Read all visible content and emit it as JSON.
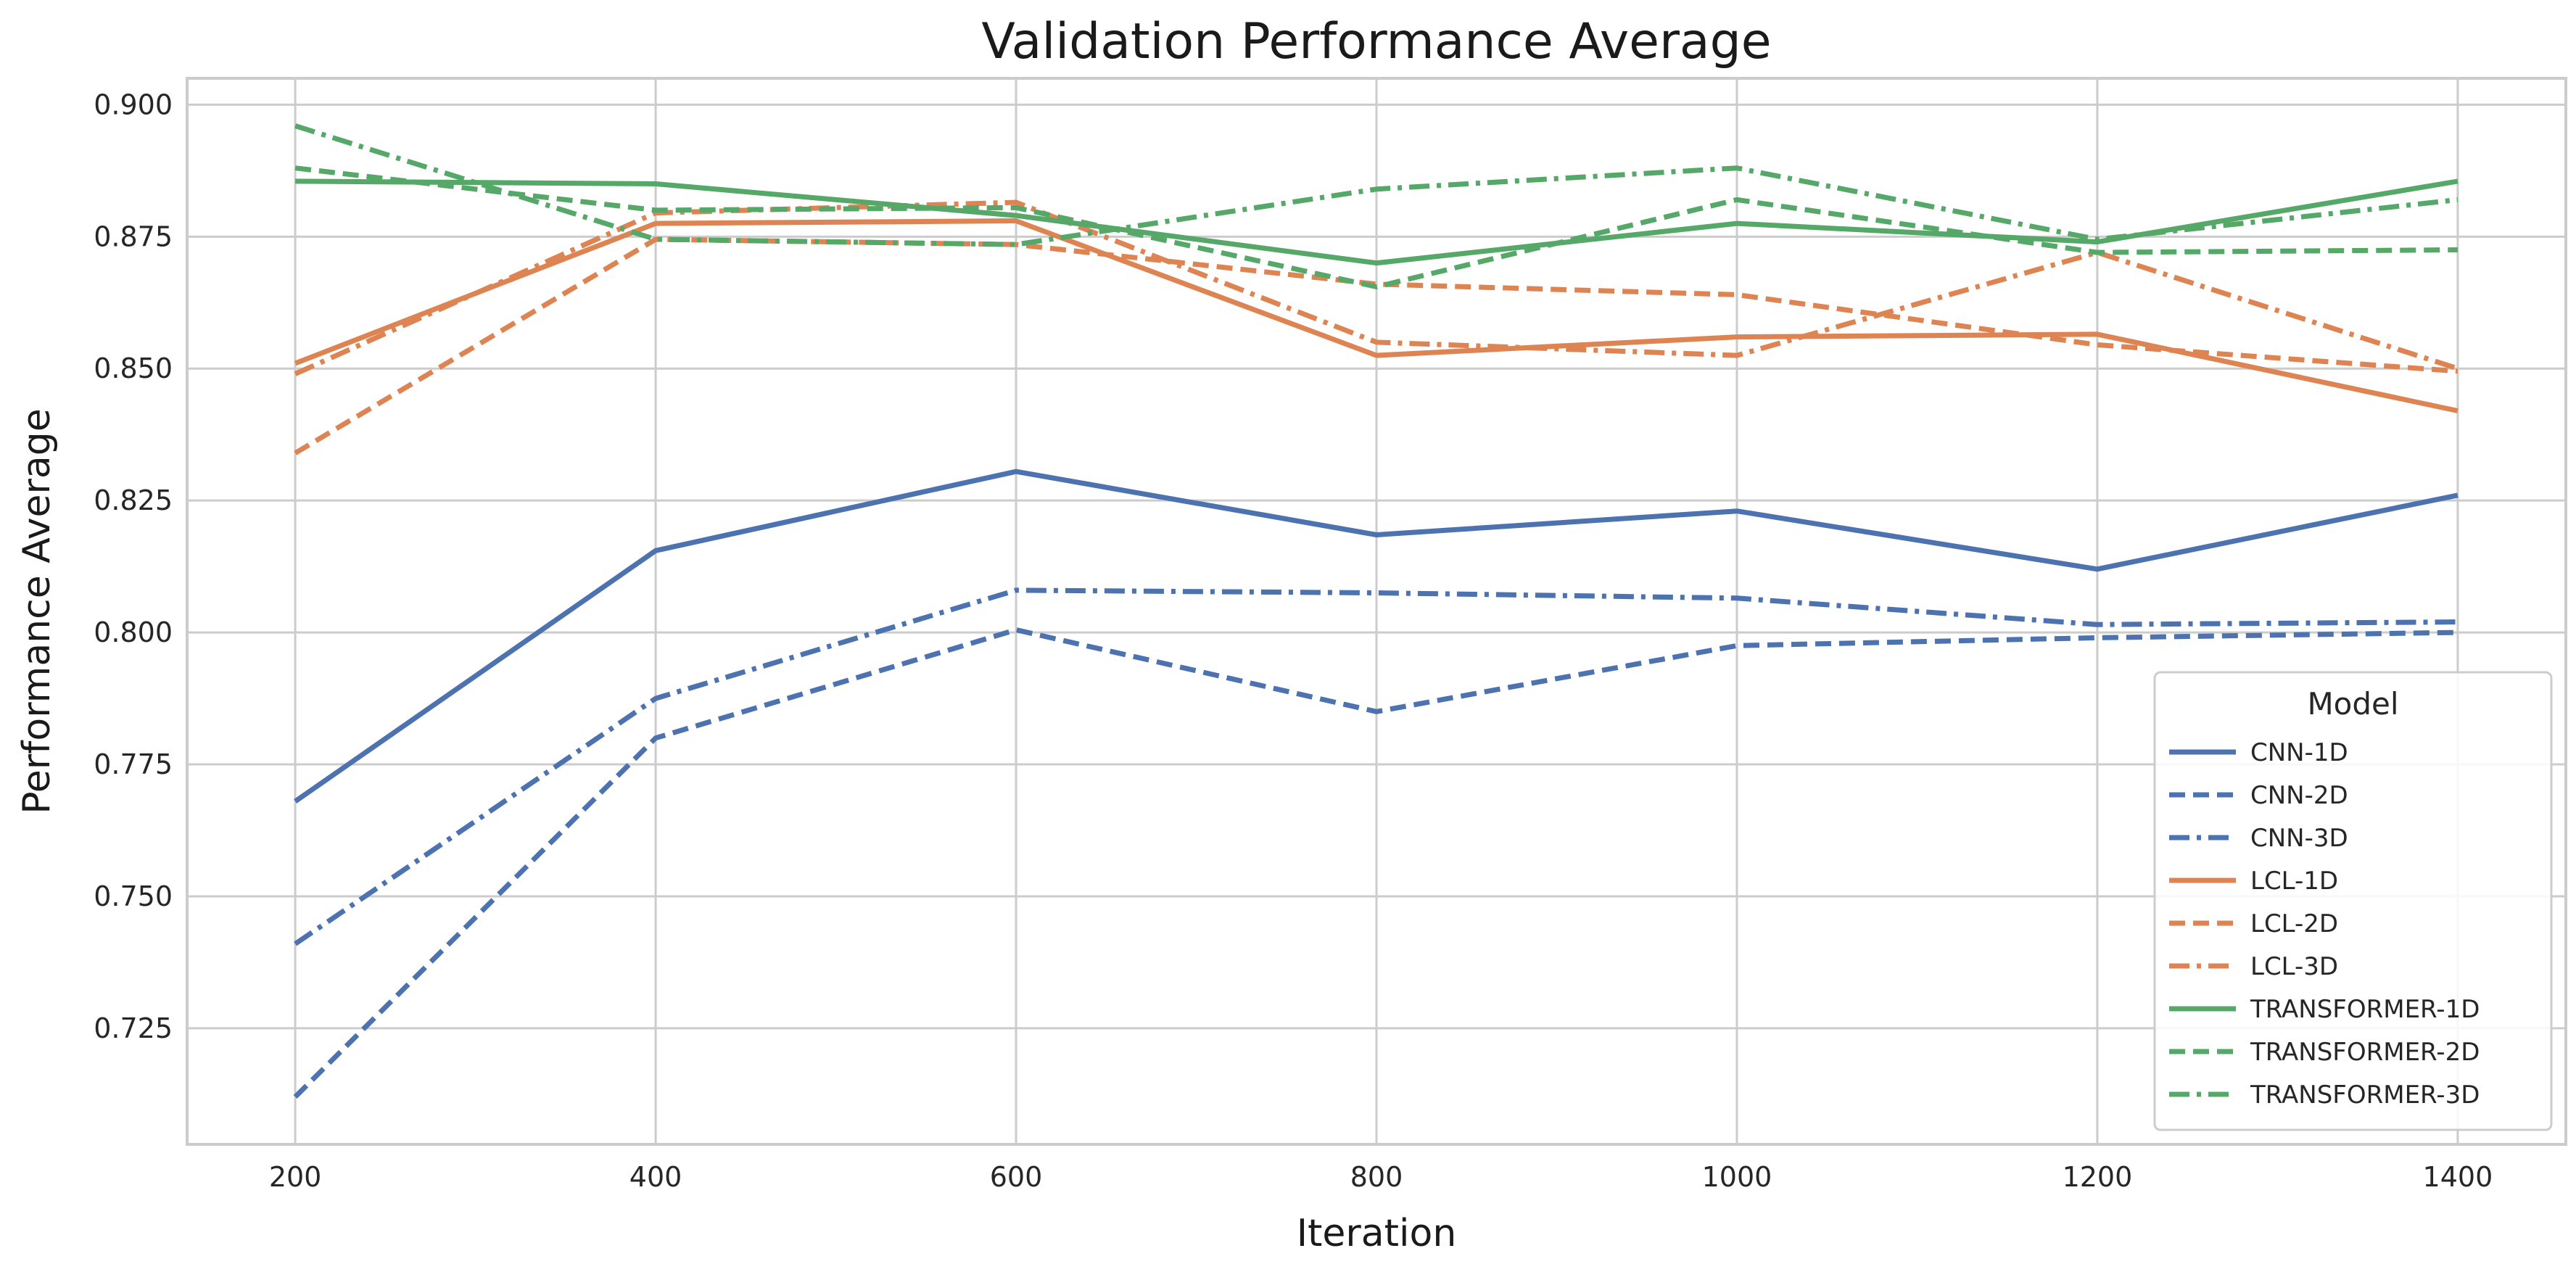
{
  "chart_data": {
    "type": "line",
    "title": "Validation Performance Average",
    "xlabel": "Iteration",
    "ylabel": "Performance Average",
    "x": [
      200,
      400,
      600,
      800,
      1000,
      1200,
      1400
    ],
    "xticks": [
      "200",
      "400",
      "600",
      "800",
      "1000",
      "1200",
      "1400"
    ],
    "yticks": [
      "0.725",
      "0.750",
      "0.775",
      "0.800",
      "0.825",
      "0.850",
      "0.875",
      "0.900"
    ],
    "xlim": [
      140,
      1460
    ],
    "ylim": [
      0.703,
      0.905
    ],
    "grid": true,
    "legend": {
      "title": "Model",
      "placement": "lower-right"
    },
    "series": [
      {
        "name": "CNN-1D",
        "color": "#4c72b0",
        "style": "solid",
        "values": [
          0.768,
          0.8155,
          0.8305,
          0.8185,
          0.823,
          0.812,
          0.826
        ]
      },
      {
        "name": "CNN-2D",
        "color": "#4c72b0",
        "style": "dashed",
        "values": [
          0.712,
          0.78,
          0.8005,
          0.785,
          0.7975,
          0.799,
          0.8
        ]
      },
      {
        "name": "CNN-3D",
        "color": "#4c72b0",
        "style": "dashdot",
        "values": [
          0.741,
          0.7875,
          0.808,
          0.8075,
          0.8065,
          0.8015,
          0.802
        ]
      },
      {
        "name": "LCL-1D",
        "color": "#dd8452",
        "style": "solid",
        "values": [
          0.851,
          0.8775,
          0.878,
          0.8525,
          0.856,
          0.8565,
          0.842
        ]
      },
      {
        "name": "LCL-2D",
        "color": "#dd8452",
        "style": "dashed",
        "values": [
          0.834,
          0.8745,
          0.8735,
          0.866,
          0.864,
          0.8545,
          0.8495
        ]
      },
      {
        "name": "LCL-3D",
        "color": "#dd8452",
        "style": "dashdot",
        "values": [
          0.849,
          0.8795,
          0.8815,
          0.855,
          0.8525,
          0.872,
          0.85
        ]
      },
      {
        "name": "TRANSFORMER-1D",
        "color": "#55a868",
        "style": "solid",
        "values": [
          0.8855,
          0.885,
          0.879,
          0.87,
          0.8775,
          0.874,
          0.8855
        ]
      },
      {
        "name": "TRANSFORMER-2D",
        "color": "#55a868",
        "style": "dashed",
        "values": [
          0.888,
          0.88,
          0.8805,
          0.8655,
          0.882,
          0.872,
          0.8725
        ]
      },
      {
        "name": "TRANSFORMER-3D",
        "color": "#55a868",
        "style": "dashdot",
        "values": [
          0.896,
          0.8745,
          0.8735,
          0.884,
          0.888,
          0.8745,
          0.882
        ]
      }
    ]
  }
}
